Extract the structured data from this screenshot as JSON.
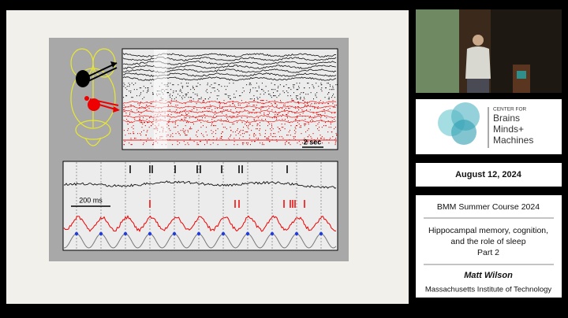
{
  "slide": {
    "raster_scale": "2 sec",
    "trace_scale": "200 ms"
  },
  "sidebar": {
    "logo": {
      "small": "CENTER FOR",
      "lines": [
        "Brains",
        "Minds+",
        "Machines"
      ]
    },
    "date": "August 12, 2024",
    "course": "BMM Summer Course 2024",
    "talk_title": [
      "Hippocampal memory, cognition,",
      "and the role of sleep",
      "Part 2"
    ],
    "speaker": "Matt Wilson",
    "affiliation": "Massachusetts Institute of Technology"
  }
}
